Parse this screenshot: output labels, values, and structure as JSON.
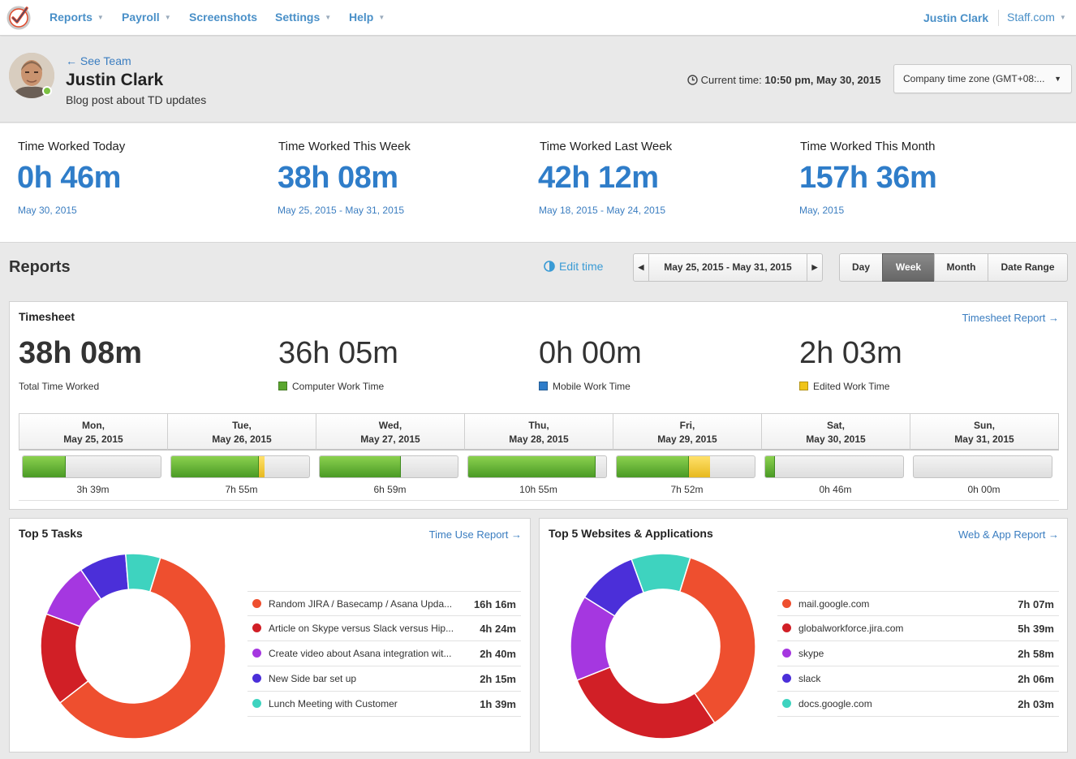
{
  "nav": {
    "items": [
      "Reports",
      "Payroll",
      "Screenshots",
      "Settings",
      "Help"
    ],
    "user": "Justin Clark",
    "company": "Staff.com"
  },
  "header": {
    "back_link": "← See Team",
    "name": "Justin Clark",
    "status": "Blog post about TD updates",
    "current_time_label": "Current time:",
    "current_time_value": "10:50 pm, May 30, 2015",
    "timezone": "Company time zone (GMT+08:..."
  },
  "stats": [
    {
      "title": "Time Worked Today",
      "value": "0h 46m",
      "date": "May 30, 2015"
    },
    {
      "title": "Time Worked This Week",
      "value": "38h 08m",
      "date": "May 25, 2015 - May 31, 2015"
    },
    {
      "title": "Time Worked Last Week",
      "value": "42h 12m",
      "date": "May 18, 2015 - May 24, 2015"
    },
    {
      "title": "Time Worked This Month",
      "value": "157h 36m",
      "date": "May, 2015"
    }
  ],
  "reports": {
    "title": "Reports",
    "edit_time": "Edit time",
    "date_range": "May 25, 2015 - May 31, 2015",
    "periods": [
      "Day",
      "Week",
      "Month",
      "Date Range"
    ],
    "active_period": "Week"
  },
  "timesheet": {
    "title": "Timesheet",
    "report_link": "Timesheet Report →",
    "total": {
      "value": "38h 08m",
      "label": "Total Time Worked"
    },
    "breakdown": [
      {
        "value": "36h 05m",
        "label": "Computer Work Time",
        "color": "#5aa62e"
      },
      {
        "value": "0h 00m",
        "label": "Mobile Work Time",
        "color": "#2f7dc9"
      },
      {
        "value": "2h 03m",
        "label": "Edited Work Time",
        "color": "#f0c419"
      }
    ],
    "days": [
      {
        "day": "Mon,",
        "date": "May 25, 2015",
        "total": "3h 39m",
        "computer_fraction": 0.31,
        "edited_fraction": 0
      },
      {
        "day": "Tue,",
        "date": "May 26, 2015",
        "total": "7h 55m",
        "computer_fraction": 0.63,
        "edited_fraction": 0.04
      },
      {
        "day": "Wed,",
        "date": "May 27, 2015",
        "total": "6h 59m",
        "computer_fraction": 0.58,
        "edited_fraction": 0
      },
      {
        "day": "Thu,",
        "date": "May 28, 2015",
        "total": "10h 55m",
        "computer_fraction": 0.91,
        "edited_fraction": 0
      },
      {
        "day": "Fri,",
        "date": "May 29, 2015",
        "total": "7h 52m",
        "computer_fraction": 0.52,
        "edited_fraction": 0.15
      },
      {
        "day": "Sat,",
        "date": "May 30, 2015",
        "total": "0h 46m",
        "computer_fraction": 0.07,
        "edited_fraction": 0
      },
      {
        "day": "Sun,",
        "date": "May 31, 2015",
        "total": "0h 00m",
        "computer_fraction": 0,
        "edited_fraction": 0
      }
    ]
  },
  "tasks": {
    "title": "Top 5 Tasks",
    "report_link": "Time Use Report →",
    "items": [
      {
        "name": "Random JIRA / Basecamp / Asana Upda...",
        "time": "16h 16m",
        "minutes": 976,
        "color": "#ee4f2f"
      },
      {
        "name": "Article on Skype versus Slack versus Hip...",
        "time": "4h 24m",
        "minutes": 264,
        "color": "#d11f26"
      },
      {
        "name": "Create video about Asana integration wit...",
        "time": "2h 40m",
        "minutes": 160,
        "color": "#a537e0"
      },
      {
        "name": "New Side bar set up",
        "time": "2h 15m",
        "minutes": 135,
        "color": "#4b2fd9"
      },
      {
        "name": "Lunch Meeting with Customer",
        "time": "1h 39m",
        "minutes": 99,
        "color": "#3ed3bf"
      }
    ]
  },
  "websites": {
    "title": "Top 5 Websites & Applications",
    "report_link": "Web & App Report →",
    "items": [
      {
        "name": "mail.google.com",
        "time": "7h 07m",
        "minutes": 427,
        "color": "#ee4f2f"
      },
      {
        "name": "globalworkforce.jira.com",
        "time": "5h 39m",
        "minutes": 339,
        "color": "#d11f26"
      },
      {
        "name": "skype",
        "time": "2h 58m",
        "minutes": 178,
        "color": "#a537e0"
      },
      {
        "name": "slack",
        "time": "2h 06m",
        "minutes": 126,
        "color": "#4b2fd9"
      },
      {
        "name": "docs.google.com",
        "time": "2h 03m",
        "minutes": 123,
        "color": "#3ed3bf"
      }
    ]
  }
}
